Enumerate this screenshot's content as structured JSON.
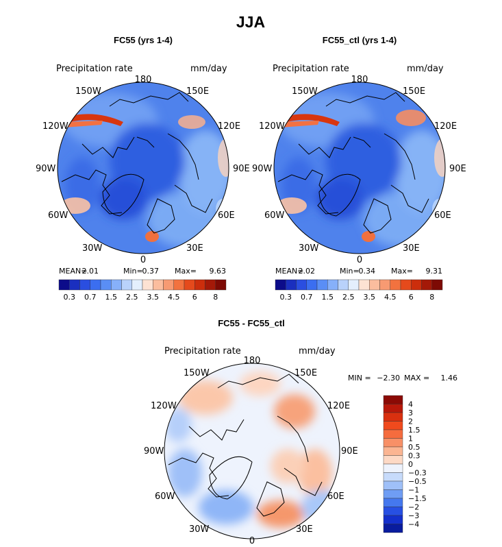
{
  "page_title": "JJA",
  "colors": {
    "land_outline": "#000000",
    "panel_bg": "#ffffff"
  },
  "chart_data": [
    {
      "type": "heatmap",
      "projection": "north-polar-stereographic",
      "title": "FC55 (yrs 1-4)",
      "variable": "Precipitation rate",
      "units": "mm/day",
      "lon_labels": [
        "180",
        "150E",
        "120E",
        "90E",
        "60E",
        "30E",
        "0",
        "30W",
        "60W",
        "90W",
        "120W",
        "150W"
      ],
      "stats": {
        "mean_label": "MEAN=",
        "mean": "2.01",
        "min_label": "Min=",
        "min": "0.37",
        "max_label": "Max=",
        "max": "9.63"
      },
      "colorbar": {
        "levels": [
          "0.3",
          "0.7",
          "1.5",
          "2.5",
          "3.5",
          "4.5",
          "6",
          "8"
        ],
        "colors": [
          "#0c0c8a",
          "#1a2fbf",
          "#2a4ee0",
          "#3b6ef0",
          "#5a8ef5",
          "#86b0fa",
          "#b9d2fb",
          "#e4effd",
          "#fde2d3",
          "#fbbd9e",
          "#f79a72",
          "#f2723f",
          "#e54a1c",
          "#cc2e0c",
          "#a41908",
          "#7d0a04"
        ]
      }
    },
    {
      "type": "heatmap",
      "projection": "north-polar-stereographic",
      "title": "FC55_ctl (yrs 1-4)",
      "variable": "Precipitation rate",
      "units": "mm/day",
      "lon_labels": [
        "180",
        "150E",
        "120E",
        "90E",
        "60E",
        "30E",
        "0",
        "30W",
        "60W",
        "90W",
        "120W",
        "150W"
      ],
      "stats": {
        "mean_label": "MEAN=",
        "mean": "2.02",
        "min_label": "Min=",
        "min": "0.34",
        "max_label": "Max=",
        "max": "9.31"
      },
      "colorbar": {
        "levels": [
          "0.3",
          "0.7",
          "1.5",
          "2.5",
          "3.5",
          "4.5",
          "6",
          "8"
        ],
        "colors": [
          "#0c0c8a",
          "#1a2fbf",
          "#2a4ee0",
          "#3b6ef0",
          "#5a8ef5",
          "#86b0fa",
          "#b9d2fb",
          "#e4effd",
          "#fde2d3",
          "#fbbd9e",
          "#f79a72",
          "#f2723f",
          "#e54a1c",
          "#cc2e0c",
          "#a41908",
          "#7d0a04"
        ]
      }
    },
    {
      "type": "heatmap",
      "projection": "north-polar-stereographic",
      "title": "FC55 - FC55_ctl",
      "variable": "Precipitation rate",
      "units": "mm/day",
      "lon_labels": [
        "180",
        "150E",
        "120E",
        "90E",
        "60E",
        "30E",
        "0",
        "30W",
        "60W",
        "90W",
        "120W",
        "150W"
      ],
      "stats": {
        "min_label": "MIN =",
        "min": "−2.30",
        "max_label": "MAX =",
        "max": "1.46"
      },
      "colorbar": {
        "orientation": "vertical",
        "levels": [
          "4",
          "3",
          "2",
          "1.5",
          "1",
          "0.5",
          "0.3",
          "0",
          "−0.3",
          "−0.5",
          "−1",
          "−1.5",
          "−2",
          "−3",
          "−4"
        ],
        "colors": [
          "#8b0a05",
          "#b8180a",
          "#d9300f",
          "#f04a1d",
          "#f56c3e",
          "#f89067",
          "#fbb592",
          "#fdd9c5",
          "#eef3fd",
          "#c7dbfb",
          "#9fc0f8",
          "#6f9df4",
          "#4578ee",
          "#2750e3",
          "#1430cc",
          "#091c9e"
        ]
      }
    }
  ]
}
